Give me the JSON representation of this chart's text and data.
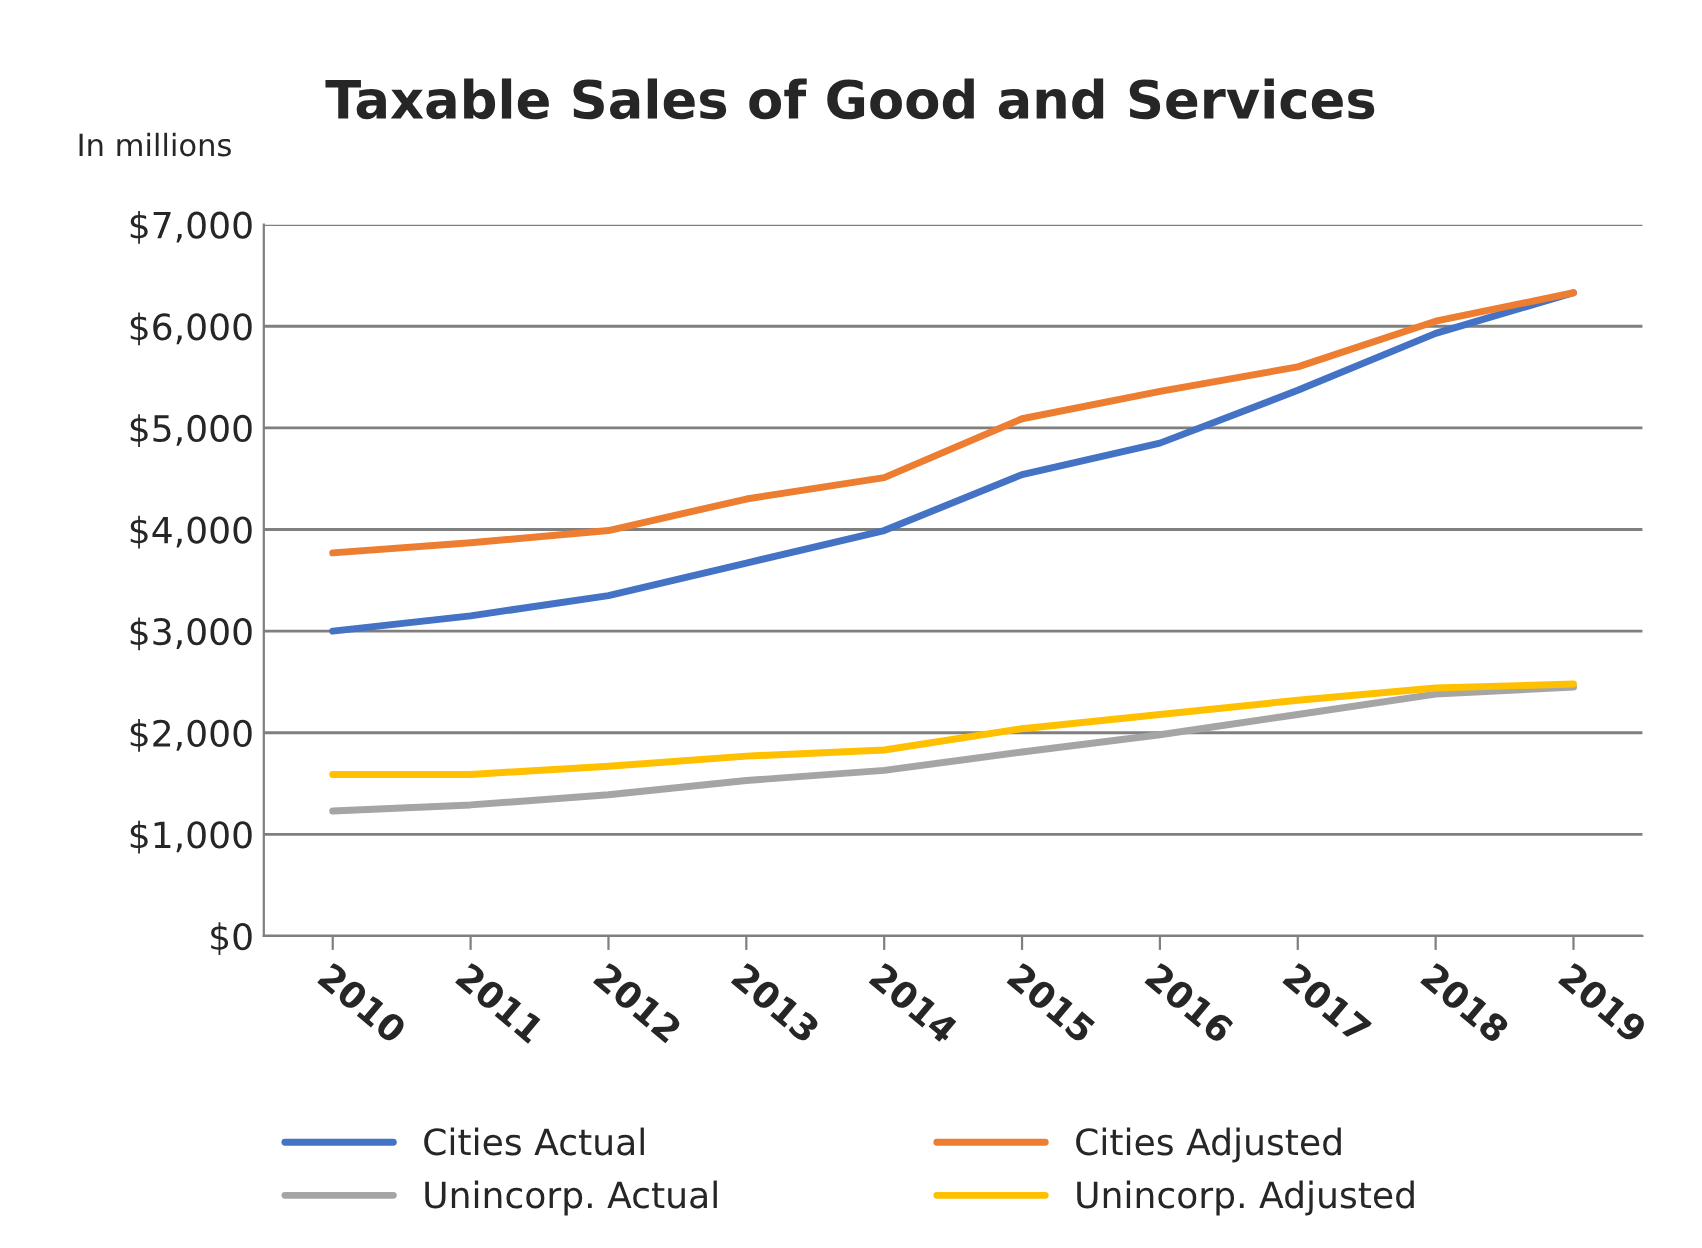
{
  "chart_data": {
    "type": "line",
    "title": "Taxable Sales of Good and Services",
    "annotations": [
      "In millions"
    ],
    "categories": [
      "2010",
      "2011",
      "2012",
      "2013",
      "2014",
      "2015",
      "2016",
      "2017",
      "2018",
      "2019"
    ],
    "series": [
      {
        "name": "Cities Actual",
        "color": "#4472c4",
        "values": [
          3000,
          3150,
          3350,
          3670,
          3990,
          4540,
          4850,
          5370,
          5930,
          6330
        ]
      },
      {
        "name": "Cities Adjusted",
        "color": "#ed7d31",
        "values": [
          3770,
          3870,
          3990,
          4300,
          4510,
          5090,
          5360,
          5600,
          6050,
          6330
        ]
      },
      {
        "name": "Unincorp. Actual",
        "color": "#a5a5a5",
        "values": [
          1230,
          1290,
          1390,
          1530,
          1630,
          1810,
          1980,
          2180,
          2380,
          2450
        ]
      },
      {
        "name": "Unincorp. Adjusted",
        "color": "#ffc000",
        "values": [
          1590,
          1590,
          1670,
          1770,
          1830,
          2040,
          2180,
          2320,
          2440,
          2480
        ]
      }
    ],
    "ylim": [
      0,
      7000
    ],
    "yticks": [
      {
        "value": 0,
        "label": "$0"
      },
      {
        "value": 1000,
        "label": "$1,000"
      },
      {
        "value": 2000,
        "label": "$2,000"
      },
      {
        "value": 3000,
        "label": "$3,000"
      },
      {
        "value": 4000,
        "label": "$4,000"
      },
      {
        "value": 5000,
        "label": "$5,000"
      },
      {
        "value": 6000,
        "label": "$6,000"
      },
      {
        "value": 7000,
        "label": "$7,000"
      }
    ],
    "grid": "y",
    "legend": "bottom",
    "marker": "none",
    "line_style": "solid"
  }
}
